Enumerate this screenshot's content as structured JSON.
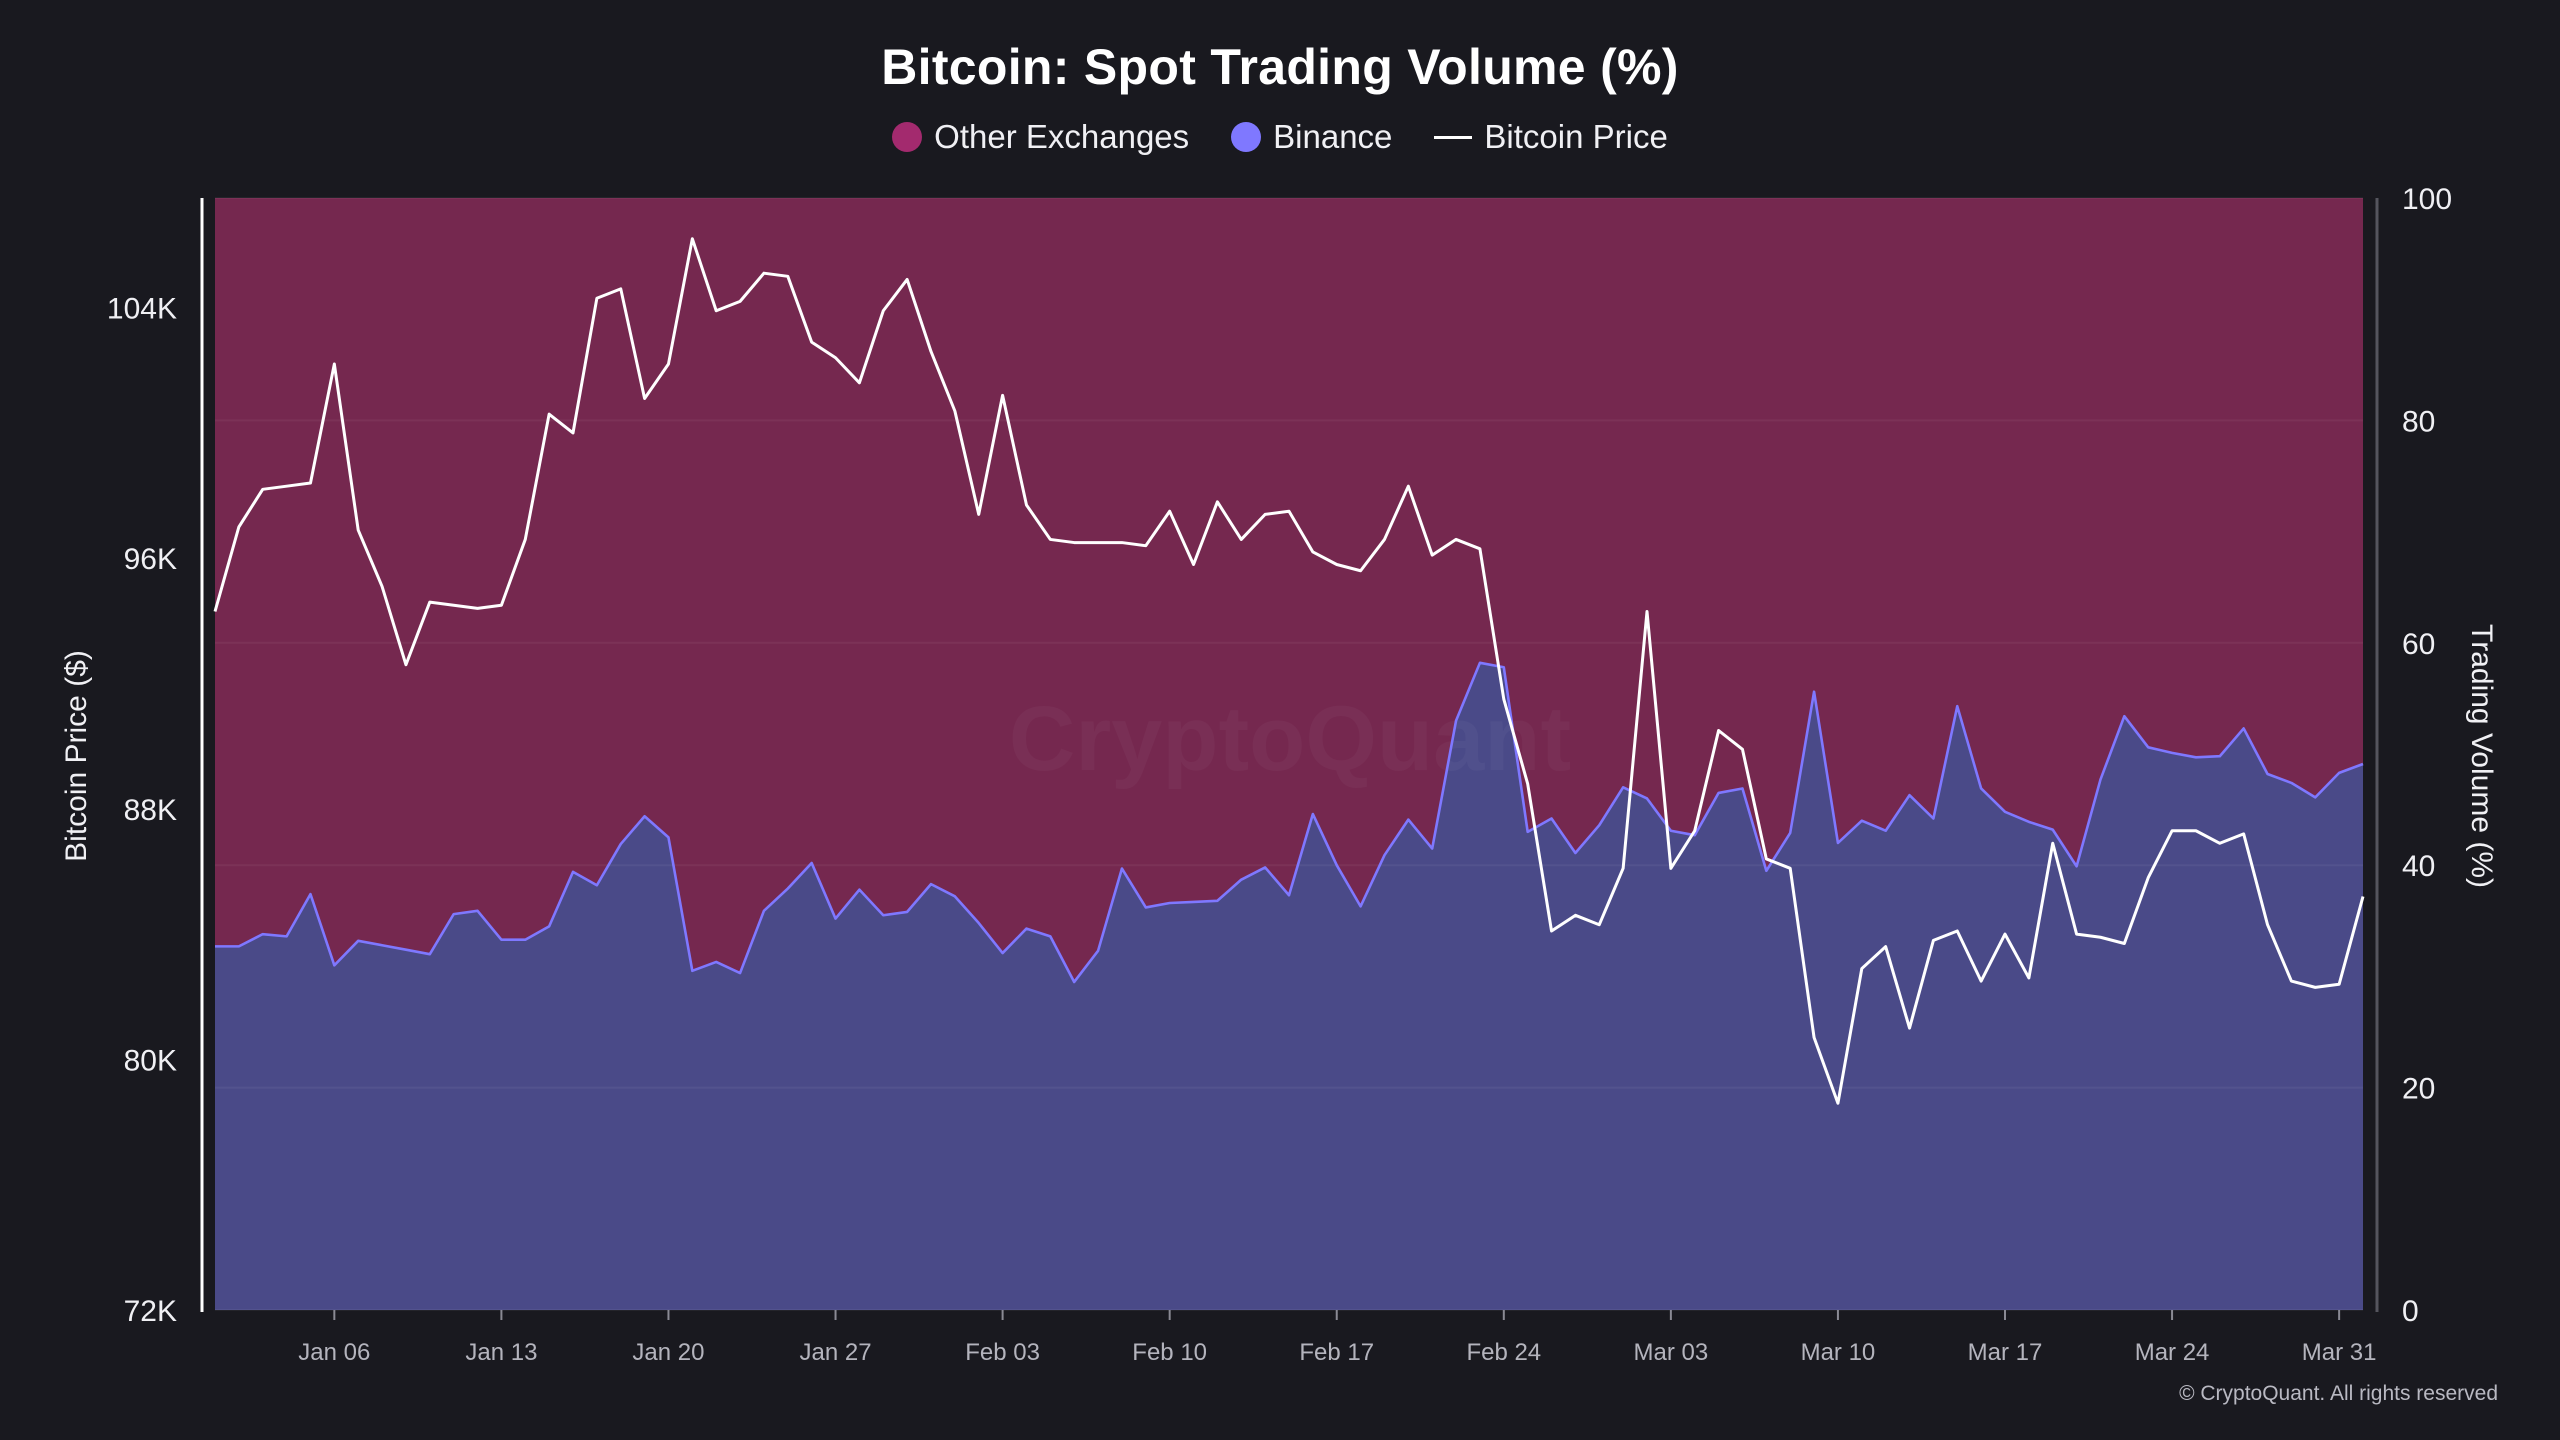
{
  "chart_data": {
    "type": "area",
    "title": "Bitcoin: Spot Trading Volume (%)",
    "legend": [
      {
        "label": "Other Exchanges",
        "color": "#a32a6e",
        "marker": "dot"
      },
      {
        "label": "Binance",
        "color": "#7f78ff",
        "marker": "dot"
      },
      {
        "label": "Bitcoin Price",
        "color": "#ffffff",
        "marker": "line"
      }
    ],
    "legend_position": "top-center",
    "ylabel_left": "Bitcoin Price ($)",
    "ylabel_right": "Trading Volume (%)",
    "y_left_ticks": [
      "72K",
      "80K",
      "88K",
      "96K",
      "104K"
    ],
    "y_left_range": [
      72000,
      107500
    ],
    "y_right_ticks": [
      "0",
      "20",
      "40",
      "60",
      "80",
      "100"
    ],
    "y_right_range": [
      0,
      100
    ],
    "x_tick_labels": [
      "Jan 06",
      "Jan 13",
      "Jan 20",
      "Jan 27",
      "Feb 03",
      "Feb 10",
      "Feb 17",
      "Feb 24",
      "Mar 03",
      "Mar 10",
      "Mar 17",
      "Mar 24",
      "Mar 31"
    ],
    "x_start": "2025-01-01",
    "x_end": "2025-04-01",
    "watermark": "CryptoQuant",
    "series": [
      {
        "name": "Binance",
        "unit": "%",
        "points": [
          [
            "2025-01-01",
            32.7
          ],
          [
            "2025-01-02",
            32.7
          ],
          [
            "2025-01-03",
            33.8
          ],
          [
            "2025-01-04",
            33.6
          ],
          [
            "2025-01-05",
            37.4
          ],
          [
            "2025-01-06",
            31.0
          ],
          [
            "2025-01-07",
            33.2
          ],
          [
            "2025-01-08",
            32.8
          ],
          [
            "2025-01-09",
            32.4
          ],
          [
            "2025-01-10",
            32.0
          ],
          [
            "2025-01-11",
            35.6
          ],
          [
            "2025-01-12",
            35.9
          ],
          [
            "2025-01-13",
            33.3
          ],
          [
            "2025-01-14",
            33.3
          ],
          [
            "2025-01-15",
            34.5
          ],
          [
            "2025-01-16",
            39.4
          ],
          [
            "2025-01-17",
            38.2
          ],
          [
            "2025-01-18",
            41.9
          ],
          [
            "2025-01-19",
            44.4
          ],
          [
            "2025-01-20",
            42.5
          ],
          [
            "2025-01-21",
            30.5
          ],
          [
            "2025-01-22",
            31.3
          ],
          [
            "2025-01-23",
            30.3
          ],
          [
            "2025-01-24",
            35.9
          ],
          [
            "2025-01-25",
            37.9
          ],
          [
            "2025-01-26",
            40.2
          ],
          [
            "2025-01-27",
            35.2
          ],
          [
            "2025-01-28",
            37.8
          ],
          [
            "2025-01-29",
            35.5
          ],
          [
            "2025-01-30",
            35.8
          ],
          [
            "2025-01-31",
            38.3
          ],
          [
            "2025-02-01",
            37.2
          ],
          [
            "2025-02-02",
            34.8
          ],
          [
            "2025-02-03",
            32.1
          ],
          [
            "2025-02-04",
            34.3
          ],
          [
            "2025-02-05",
            33.6
          ],
          [
            "2025-02-06",
            29.5
          ],
          [
            "2025-02-07",
            32.3
          ],
          [
            "2025-02-08",
            39.7
          ],
          [
            "2025-02-09",
            36.2
          ],
          [
            "2025-02-10",
            36.6
          ],
          [
            "2025-02-11",
            36.7
          ],
          [
            "2025-02-12",
            36.8
          ],
          [
            "2025-02-13",
            38.7
          ],
          [
            "2025-02-14",
            39.8
          ],
          [
            "2025-02-15",
            37.3
          ],
          [
            "2025-02-16",
            44.6
          ],
          [
            "2025-02-17",
            40.0
          ],
          [
            "2025-02-18",
            36.3
          ],
          [
            "2025-02-19",
            40.9
          ],
          [
            "2025-02-20",
            44.1
          ],
          [
            "2025-02-21",
            41.5
          ],
          [
            "2025-02-22",
            53.0
          ],
          [
            "2025-02-23",
            58.2
          ],
          [
            "2025-02-24",
            57.8
          ],
          [
            "2025-02-25",
            43.0
          ],
          [
            "2025-02-26",
            44.2
          ],
          [
            "2025-02-27",
            41.1
          ],
          [
            "2025-02-28",
            43.6
          ],
          [
            "2025-03-01",
            47.0
          ],
          [
            "2025-03-02",
            46.0
          ],
          [
            "2025-03-03",
            43.1
          ],
          [
            "2025-03-04",
            42.7
          ],
          [
            "2025-03-05",
            46.5
          ],
          [
            "2025-03-06",
            46.9
          ],
          [
            "2025-03-07",
            39.5
          ],
          [
            "2025-03-08",
            42.9
          ],
          [
            "2025-03-09",
            55.6
          ],
          [
            "2025-03-10",
            42.0
          ],
          [
            "2025-03-11",
            44.0
          ],
          [
            "2025-03-12",
            43.1
          ],
          [
            "2025-03-13",
            46.3
          ],
          [
            "2025-03-14",
            44.2
          ],
          [
            "2025-03-15",
            54.3
          ],
          [
            "2025-03-16",
            46.9
          ],
          [
            "2025-03-17",
            44.8
          ],
          [
            "2025-03-18",
            43.9
          ],
          [
            "2025-03-19",
            43.2
          ],
          [
            "2025-03-20",
            39.9
          ],
          [
            "2025-03-21",
            47.7
          ],
          [
            "2025-03-22",
            53.4
          ],
          [
            "2025-03-23",
            50.6
          ],
          [
            "2025-03-24",
            50.1
          ],
          [
            "2025-03-25",
            49.7
          ],
          [
            "2025-03-26",
            49.8
          ],
          [
            "2025-03-27",
            52.3
          ],
          [
            "2025-03-28",
            48.2
          ],
          [
            "2025-03-29",
            47.4
          ],
          [
            "2025-03-30",
            46.1
          ],
          [
            "2025-03-31",
            48.3
          ],
          [
            "2025-04-01",
            49.1
          ]
        ]
      },
      {
        "name": "Other Exchanges",
        "unit": "%",
        "note_equals": "100 - Binance",
        "points_from": "Binance"
      },
      {
        "name": "Bitcoin Price",
        "unit": "$",
        "points": [
          [
            "2025-01-01",
            94300
          ],
          [
            "2025-01-02",
            97000
          ],
          [
            "2025-01-03",
            98200
          ],
          [
            "2025-01-04",
            98300
          ],
          [
            "2025-01-05",
            98400
          ],
          [
            "2025-01-06",
            102200
          ],
          [
            "2025-01-07",
            96900
          ],
          [
            "2025-01-08",
            95100
          ],
          [
            "2025-01-09",
            92600
          ],
          [
            "2025-01-10",
            94600
          ],
          [
            "2025-01-11",
            94500
          ],
          [
            "2025-01-12",
            94400
          ],
          [
            "2025-01-13",
            94500
          ],
          [
            "2025-01-14",
            96600
          ],
          [
            "2025-01-15",
            100600
          ],
          [
            "2025-01-16",
            100000
          ],
          [
            "2025-01-17",
            104300
          ],
          [
            "2025-01-18",
            104600
          ],
          [
            "2025-01-19",
            101100
          ],
          [
            "2025-01-20",
            102200
          ],
          [
            "2025-01-21",
            106200
          ],
          [
            "2025-01-22",
            103900
          ],
          [
            "2025-01-23",
            104200
          ],
          [
            "2025-01-24",
            105100
          ],
          [
            "2025-01-25",
            105000
          ],
          [
            "2025-01-26",
            102900
          ],
          [
            "2025-01-27",
            102400
          ],
          [
            "2025-01-28",
            101600
          ],
          [
            "2025-01-29",
            103900
          ],
          [
            "2025-01-30",
            104900
          ],
          [
            "2025-01-31",
            102600
          ],
          [
            "2025-02-01",
            100700
          ],
          [
            "2025-02-02",
            97400
          ],
          [
            "2025-02-03",
            101200
          ],
          [
            "2025-02-04",
            97700
          ],
          [
            "2025-02-05",
            96600
          ],
          [
            "2025-02-06",
            96500
          ],
          [
            "2025-02-07",
            96500
          ],
          [
            "2025-02-08",
            96500
          ],
          [
            "2025-02-09",
            96400
          ],
          [
            "2025-02-10",
            97500
          ],
          [
            "2025-02-11",
            95800
          ],
          [
            "2025-02-12",
            97800
          ],
          [
            "2025-02-13",
            96600
          ],
          [
            "2025-02-14",
            97400
          ],
          [
            "2025-02-15",
            97500
          ],
          [
            "2025-02-16",
            96200
          ],
          [
            "2025-02-17",
            95800
          ],
          [
            "2025-02-18",
            95600
          ],
          [
            "2025-02-19",
            96600
          ],
          [
            "2025-02-20",
            98300
          ],
          [
            "2025-02-21",
            96100
          ],
          [
            "2025-02-22",
            96600
          ],
          [
            "2025-02-23",
            96300
          ],
          [
            "2025-02-24",
            91500
          ],
          [
            "2025-02-25",
            88800
          ],
          [
            "2025-02-26",
            84100
          ],
          [
            "2025-02-27",
            84600
          ],
          [
            "2025-02-28",
            84300
          ],
          [
            "2025-03-01",
            86100
          ],
          [
            "2025-03-02",
            94300
          ],
          [
            "2025-03-03",
            86100
          ],
          [
            "2025-03-04",
            87300
          ],
          [
            "2025-03-05",
            90500
          ],
          [
            "2025-03-06",
            89900
          ],
          [
            "2025-03-07",
            86400
          ],
          [
            "2025-03-08",
            86100
          ],
          [
            "2025-03-09",
            80700
          ],
          [
            "2025-03-10",
            78600
          ],
          [
            "2025-03-11",
            82900
          ],
          [
            "2025-03-12",
            83600
          ],
          [
            "2025-03-13",
            81000
          ],
          [
            "2025-03-14",
            83800
          ],
          [
            "2025-03-15",
            84100
          ],
          [
            "2025-03-16",
            82500
          ],
          [
            "2025-03-17",
            84000
          ],
          [
            "2025-03-18",
            82600
          ],
          [
            "2025-03-19",
            86900
          ],
          [
            "2025-03-20",
            84000
          ],
          [
            "2025-03-21",
            83900
          ],
          [
            "2025-03-22",
            83700
          ],
          [
            "2025-03-23",
            85800
          ],
          [
            "2025-03-24",
            87300
          ],
          [
            "2025-03-25",
            87300
          ],
          [
            "2025-03-26",
            86900
          ],
          [
            "2025-03-27",
            87200
          ],
          [
            "2025-03-28",
            84300
          ],
          [
            "2025-03-29",
            82500
          ],
          [
            "2025-03-30",
            82300
          ],
          [
            "2025-03-31",
            82400
          ],
          [
            "2025-04-01",
            85200
          ]
        ]
      }
    ]
  },
  "footer": {
    "copyright": "© CryptoQuant. All rights reserved"
  },
  "colors": {
    "background": "#19191f",
    "other_exchanges_fill": "#75284f",
    "binance_fill": "#4a4a88",
    "binance_line": "#7f78ff",
    "price_line": "#ffffff",
    "axis_line": "#ffffff"
  }
}
